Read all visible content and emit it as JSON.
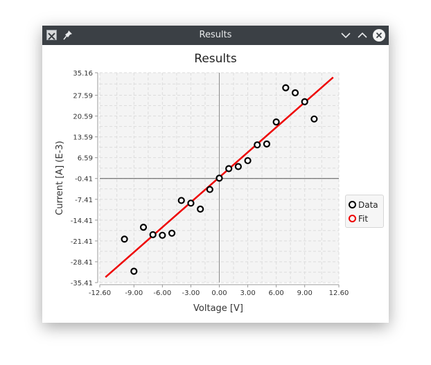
{
  "window": {
    "title": "Results",
    "icons": [
      "app-x-icon",
      "pin-icon",
      "chevron-down-icon",
      "chevron-up-icon",
      "close-icon"
    ]
  },
  "colors": {
    "titlebar": "#3b4045",
    "plot_background": "#f4f4f4",
    "data_marker": "#000000",
    "fit_line": "#ee0000"
  },
  "chart_data": {
    "type": "scatter",
    "title": "Results",
    "xlabel": "Voltage [V]",
    "ylabel": "Current [A] (E-3)",
    "xlim": [
      -12.6,
      12.6
    ],
    "ylim": [
      -35.41,
      35.16
    ],
    "x_ticks": [
      -12.6,
      -9.0,
      -6.0,
      -3.0,
      0.0,
      3.0,
      6.0,
      9.0,
      12.6
    ],
    "x_tick_labels": [
      "-12.60",
      "-9.00",
      "-6.00",
      "-3.00",
      "0.00",
      "3.00",
      "6.00",
      "9.00",
      "12.60"
    ],
    "y_ticks": [
      35.16,
      27.59,
      20.59,
      13.59,
      6.59,
      -0.41,
      -7.41,
      -14.41,
      -21.41,
      -28.41,
      -35.41
    ],
    "y_tick_labels": [
      "35.16",
      "27.59",
      "20.59",
      "13.59",
      "6.59",
      "-0.41",
      "-7.41",
      "-14.41",
      "-21.41",
      "-28.41",
      "-35.41"
    ],
    "grid": true,
    "legend": "right",
    "series": [
      {
        "name": "Data",
        "kind": "scatter",
        "x": [
          -10,
          -9,
          -8,
          -7,
          -6,
          -5,
          -4,
          -3,
          -2,
          -1,
          0,
          1,
          2,
          3,
          4,
          5,
          6,
          7,
          8,
          9,
          10
        ],
        "y": [
          -20.8,
          -31.6,
          -16.8,
          -19.3,
          -19.5,
          -18.8,
          -7.8,
          -8.7,
          -10.7,
          -4.1,
          -0.3,
          2.9,
          3.6,
          5.6,
          10.9,
          11.2,
          18.6,
          30.1,
          28.4,
          25.4,
          19.6
        ]
      },
      {
        "name": "Fit",
        "kind": "line",
        "x": [
          -12.0,
          12.0
        ],
        "y": [
          -33.6,
          33.6
        ]
      }
    ]
  }
}
